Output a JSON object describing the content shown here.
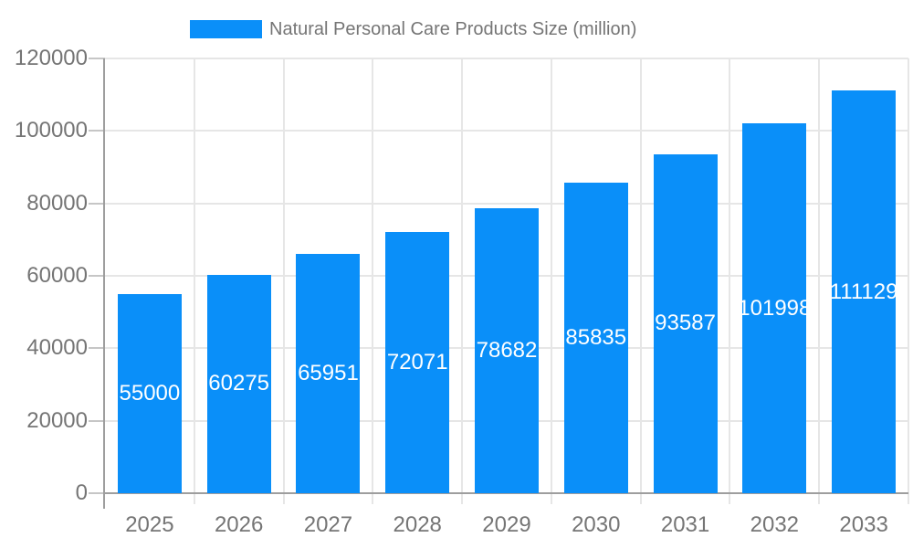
{
  "chart_data": {
    "type": "bar",
    "title": "",
    "legend_position": "top",
    "categories": [
      "2025",
      "2026",
      "2027",
      "2028",
      "2029",
      "2030",
      "2031",
      "2032",
      "2033"
    ],
    "series": [
      {
        "name": "Natural Personal Care Products Size (million)",
        "values": [
          55000,
          60275,
          65951,
          72071,
          78682,
          85835,
          93587,
          101998,
          111129
        ]
      }
    ],
    "xlabel": "",
    "ylabel": "",
    "ylim": [
      0,
      120000
    ],
    "yticks": [
      0,
      20000,
      40000,
      60000,
      80000,
      100000,
      120000
    ],
    "grid": true,
    "colors": {
      "bar": "#0a8ff9",
      "axis_text": "#757575",
      "annotation_text": "#ffffff",
      "gridline": "#e6e6e6",
      "axis_line": "#9e9e9e",
      "tick": "#c6c6c6",
      "background": "#ffffff"
    }
  }
}
